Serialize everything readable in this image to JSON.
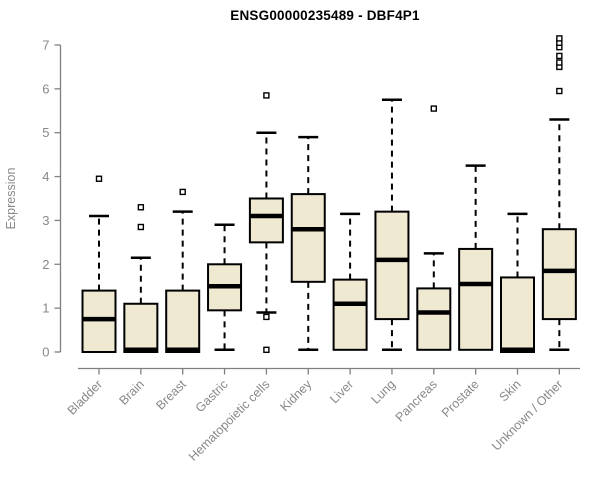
{
  "title": "ENSG00000235489 - DBF4P1",
  "colors": {
    "background": "#ffffff",
    "box_fill": "#efe9d1",
    "box_border": "#000000",
    "median_line": "#000000",
    "whisker": "#000000",
    "outlier_stroke": "#000000",
    "axis_line": "#808080",
    "tick_text": "#888888",
    "title_text": "#000000"
  },
  "chart_data": {
    "type": "boxplot",
    "title": "ENSG00000235489 - DBF4P1",
    "xlabel": "",
    "ylabel": "Expression",
    "ylim": [
      0,
      7.2
    ],
    "yticks": [
      0,
      1,
      2,
      3,
      4,
      5,
      6,
      7
    ],
    "grid": false,
    "legend": "none",
    "categories": [
      "Bladder",
      "Brain",
      "Breast",
      "Gastric",
      "Hematopoietic cells",
      "Kidney",
      "Liver",
      "Lung",
      "Pancreas",
      "Prostate",
      "Skin",
      "Unknown / Other"
    ],
    "boxes": [
      {
        "category": "Bladder",
        "whisker_low": 0.0,
        "q1": 0.0,
        "median": 0.75,
        "q3": 1.4,
        "whisker_high": 3.1,
        "outliers": [
          3.95
        ]
      },
      {
        "category": "Brain",
        "whisker_low": 0.0,
        "q1": 0.0,
        "median": 0.05,
        "q3": 1.1,
        "whisker_high": 2.15,
        "outliers": [
          2.85,
          3.3
        ]
      },
      {
        "category": "Breast",
        "whisker_low": 0.0,
        "q1": 0.0,
        "median": 0.05,
        "q3": 1.4,
        "whisker_high": 3.2,
        "outliers": [
          3.65
        ]
      },
      {
        "category": "Gastric",
        "whisker_low": 0.05,
        "q1": 0.95,
        "median": 1.5,
        "q3": 2.0,
        "whisker_high": 2.9,
        "outliers": []
      },
      {
        "category": "Hematopoietic cells",
        "whisker_low": 0.9,
        "q1": 2.5,
        "median": 3.1,
        "q3": 3.5,
        "whisker_high": 5.0,
        "outliers": [
          0.05,
          0.8,
          5.85
        ]
      },
      {
        "category": "Kidney",
        "whisker_low": 0.05,
        "q1": 1.6,
        "median": 2.8,
        "q3": 3.6,
        "whisker_high": 4.9,
        "outliers": []
      },
      {
        "category": "Liver",
        "whisker_low": 0.05,
        "q1": 0.05,
        "median": 1.1,
        "q3": 1.65,
        "whisker_high": 3.15,
        "outliers": []
      },
      {
        "category": "Lung",
        "whisker_low": 0.05,
        "q1": 0.75,
        "median": 2.1,
        "q3": 3.2,
        "whisker_high": 5.75,
        "outliers": []
      },
      {
        "category": "Pancreas",
        "whisker_low": 0.05,
        "q1": 0.05,
        "median": 0.9,
        "q3": 1.45,
        "whisker_high": 2.25,
        "outliers": [
          5.55
        ]
      },
      {
        "category": "Prostate",
        "whisker_low": 0.05,
        "q1": 0.05,
        "median": 1.55,
        "q3": 2.35,
        "whisker_high": 4.25,
        "outliers": []
      },
      {
        "category": "Skin",
        "whisker_low": 0.0,
        "q1": 0.0,
        "median": 0.05,
        "q3": 1.7,
        "whisker_high": 3.15,
        "outliers": []
      },
      {
        "category": "Unknown / Other",
        "whisker_low": 0.05,
        "q1": 0.75,
        "median": 1.85,
        "q3": 2.8,
        "whisker_high": 5.3,
        "outliers": [
          5.95,
          6.5,
          6.6,
          6.75,
          6.95,
          7.05,
          7.15
        ]
      }
    ]
  }
}
